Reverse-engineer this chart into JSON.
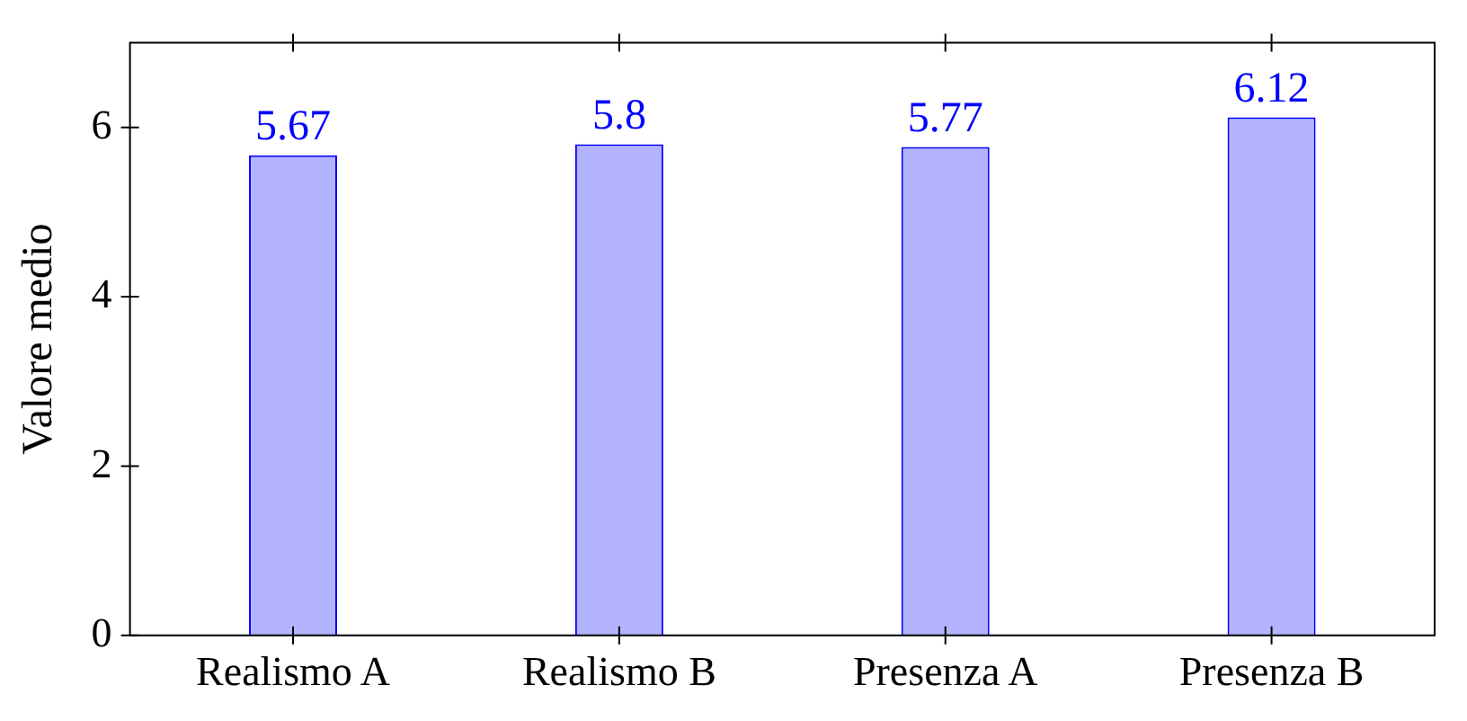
{
  "chart_data": {
    "type": "bar",
    "ylabel": "Valore medio",
    "categories": [
      "Realismo A",
      "Realismo B",
      "Presenza A",
      "Presenza B"
    ],
    "values": [
      5.67,
      5.8,
      5.77,
      6.12
    ],
    "color": "#b3b3ff",
    "ylim": [
      0,
      7
    ],
    "yticks": [
      0,
      2,
      4,
      6
    ],
    "grid": false,
    "legend": false,
    "data_labels": true
  }
}
